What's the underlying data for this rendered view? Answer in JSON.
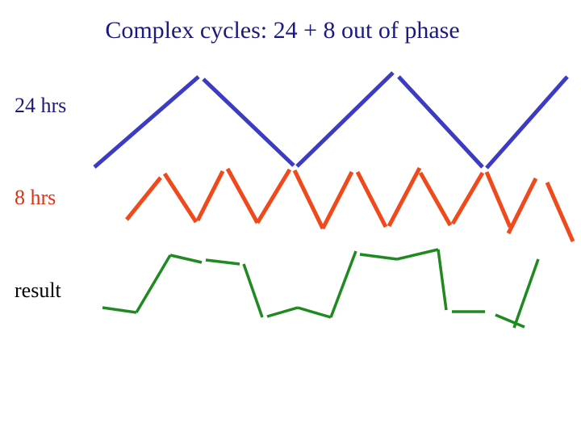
{
  "slide": {
    "title": "Complex cycles: 24 + 8 out of phase",
    "rows": [
      {
        "label": "24 hrs",
        "color": "#3b3bc4"
      },
      {
        "label": "8 hrs",
        "color": "#f04a1c"
      },
      {
        "label": "result",
        "color": "#1f8a1f"
      }
    ]
  }
}
